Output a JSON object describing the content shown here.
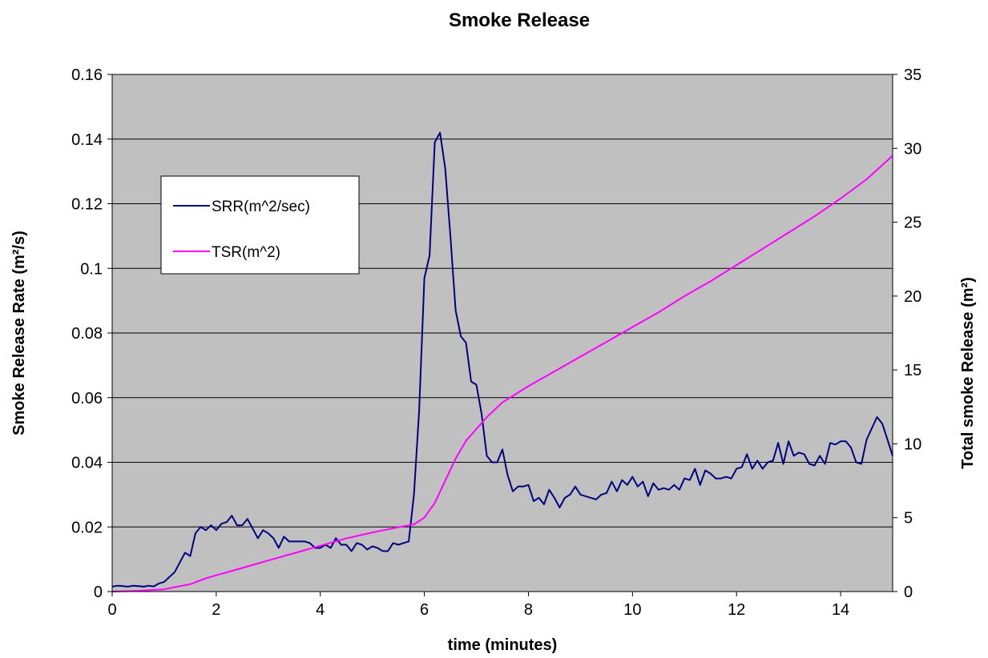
{
  "chart_data": {
    "type": "line",
    "title": "Smoke Release",
    "xlabel": "time (minutes)",
    "ylabel_left": "Smoke Release Rate (m²/s)",
    "ylabel_right": "Total smoke Release (m²)",
    "xlim": [
      0,
      15
    ],
    "ylim_left": [
      0,
      0.16
    ],
    "ylim_right": [
      0,
      35
    ],
    "x_ticks": [
      "0",
      "2",
      "4",
      "6",
      "8",
      "10",
      "12",
      "14"
    ],
    "y_left_ticks": [
      "0",
      "0.02",
      "0.04",
      "0.06",
      "0.08",
      "0.1",
      "0.12",
      "0.14",
      "0.16"
    ],
    "y_right_ticks": [
      "0",
      "5",
      "10",
      "15",
      "20",
      "25",
      "30",
      "35"
    ],
    "grid": "horizontal",
    "legend_position": "upper-left",
    "background": "#c0c0c0",
    "series": [
      {
        "name": "SRR(m^2/sec)",
        "axis": "left",
        "color": "#000080",
        "x": [
          0,
          0.1,
          0.2,
          0.3,
          0.4,
          0.5,
          0.6,
          0.7,
          0.8,
          0.9,
          1.0,
          1.1,
          1.2,
          1.3,
          1.4,
          1.5,
          1.6,
          1.7,
          1.8,
          1.9,
          2.0,
          2.1,
          2.2,
          2.3,
          2.4,
          2.5,
          2.6,
          2.7,
          2.8,
          2.9,
          3.0,
          3.1,
          3.2,
          3.3,
          3.4,
          3.5,
          3.6,
          3.7,
          3.8,
          3.9,
          4.0,
          4.1,
          4.2,
          4.3,
          4.4,
          4.5,
          4.6,
          4.7,
          4.8,
          4.9,
          5.0,
          5.1,
          5.2,
          5.3,
          5.4,
          5.5,
          5.6,
          5.7,
          5.8,
          5.9,
          6.0,
          6.1,
          6.2,
          6.3,
          6.4,
          6.5,
          6.6,
          6.7,
          6.8,
          6.9,
          7.0,
          7.1,
          7.2,
          7.3,
          7.4,
          7.5,
          7.6,
          7.7,
          7.8,
          7.9,
          8.0,
          8.1,
          8.2,
          8.3,
          8.4,
          8.5,
          8.6,
          8.7,
          8.8,
          8.9,
          9.0,
          9.1,
          9.2,
          9.3,
          9.4,
          9.5,
          9.6,
          9.7,
          9.8,
          9.9,
          10.0,
          10.1,
          10.2,
          10.3,
          10.4,
          10.5,
          10.6,
          10.7,
          10.8,
          10.9,
          11.0,
          11.1,
          11.2,
          11.3,
          11.4,
          11.5,
          11.6,
          11.7,
          11.8,
          11.9,
          12.0,
          12.1,
          12.2,
          12.3,
          12.4,
          12.5,
          12.6,
          12.7,
          12.8,
          12.9,
          13.0,
          13.1,
          13.2,
          13.3,
          13.4,
          13.5,
          13.6,
          13.7,
          13.8,
          13.9,
          14.0,
          14.1,
          14.2,
          14.3,
          14.4,
          14.5,
          14.6,
          14.7,
          14.8,
          14.9,
          15.0
        ],
        "values": [
          0.0015,
          0.0018,
          0.0017,
          0.0015,
          0.0018,
          0.0017,
          0.0015,
          0.0018,
          0.0016,
          0.0025,
          0.003,
          0.0045,
          0.006,
          0.009,
          0.012,
          0.011,
          0.018,
          0.02,
          0.019,
          0.0205,
          0.019,
          0.021,
          0.0215,
          0.0235,
          0.0205,
          0.0205,
          0.0225,
          0.0195,
          0.0165,
          0.019,
          0.018,
          0.0165,
          0.0135,
          0.017,
          0.0155,
          0.0155,
          0.0155,
          0.0155,
          0.015,
          0.0135,
          0.0135,
          0.0145,
          0.0135,
          0.0165,
          0.0145,
          0.0145,
          0.0125,
          0.015,
          0.0145,
          0.013,
          0.014,
          0.0135,
          0.0125,
          0.0125,
          0.015,
          0.0145,
          0.015,
          0.0155,
          0.03,
          0.056,
          0.097,
          0.104,
          0.139,
          0.142,
          0.131,
          0.11,
          0.087,
          0.079,
          0.077,
          0.065,
          0.064,
          0.055,
          0.042,
          0.04,
          0.04,
          0.044,
          0.036,
          0.031,
          0.0325,
          0.0325,
          0.033,
          0.028,
          0.029,
          0.027,
          0.0315,
          0.029,
          0.026,
          0.029,
          0.03,
          0.0325,
          0.03,
          0.0295,
          0.029,
          0.0285,
          0.03,
          0.0305,
          0.034,
          0.031,
          0.0345,
          0.033,
          0.0355,
          0.0325,
          0.034,
          0.0295,
          0.0335,
          0.0315,
          0.032,
          0.0315,
          0.033,
          0.0315,
          0.035,
          0.0345,
          0.038,
          0.033,
          0.0375,
          0.0365,
          0.035,
          0.035,
          0.0355,
          0.035,
          0.038,
          0.0385,
          0.0425,
          0.038,
          0.0405,
          0.038,
          0.04,
          0.0405,
          0.046,
          0.0395,
          0.0465,
          0.042,
          0.043,
          0.0425,
          0.0395,
          0.039,
          0.042,
          0.0395,
          0.046,
          0.0455,
          0.0465,
          0.0465,
          0.0445,
          0.04,
          0.0395,
          0.047,
          0.0505,
          0.054,
          0.052,
          0.047,
          0.042
        ]
      },
      {
        "name": "TSR(m^2)",
        "axis": "right",
        "color": "#ff00ff",
        "x": [
          0,
          0.5,
          1.0,
          1.2,
          1.5,
          1.8,
          2.0,
          2.5,
          3.0,
          3.5,
          4.0,
          4.5,
          5.0,
          5.5,
          5.8,
          6.0,
          6.2,
          6.4,
          6.6,
          6.8,
          7.0,
          7.2,
          7.5,
          8.0,
          8.5,
          9.0,
          9.5,
          10.0,
          10.5,
          11.0,
          11.5,
          12.0,
          12.5,
          13.0,
          13.5,
          14.0,
          14.5,
          15.0
        ],
        "values": [
          0,
          0.05,
          0.15,
          0.3,
          0.5,
          0.9,
          1.1,
          1.6,
          2.1,
          2.6,
          3.1,
          3.6,
          4.0,
          4.35,
          4.55,
          5.0,
          6.0,
          7.5,
          9.0,
          10.2,
          11.0,
          11.8,
          12.8,
          13.9,
          14.9,
          15.9,
          16.9,
          17.9,
          18.9,
          20.0,
          21.0,
          22.1,
          23.2,
          24.3,
          25.4,
          26.6,
          27.9,
          29.5
        ]
      }
    ]
  }
}
